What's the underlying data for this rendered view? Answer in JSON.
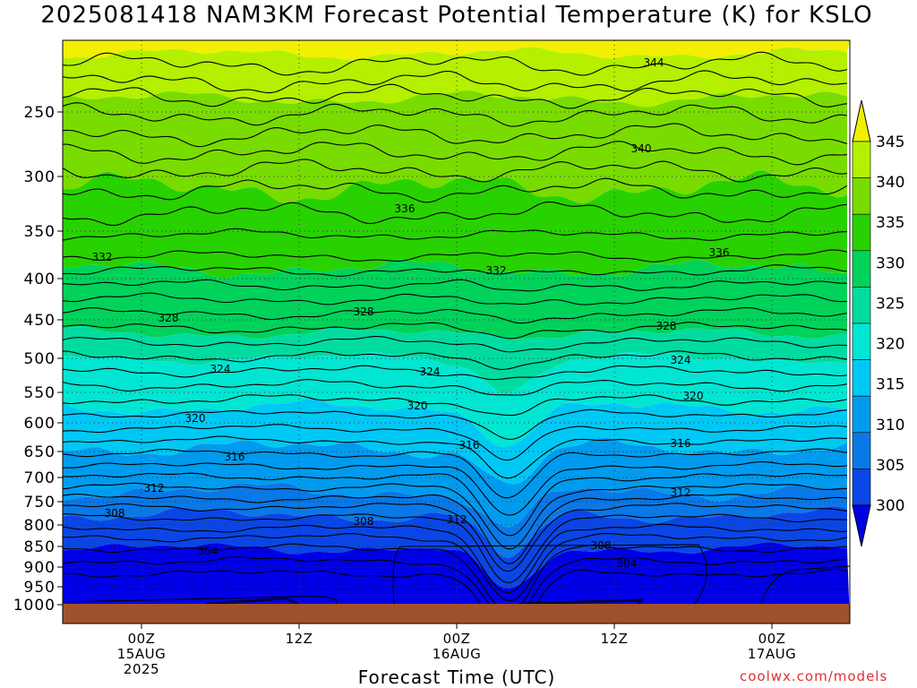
{
  "title": "2025081418 NAM3KM Forecast Potential Temperature (K) for KSLO",
  "credit": "coolwx.com/models",
  "chart_data": {
    "type": "heatmap",
    "title": "2025081418 NAM3KM Forecast Potential Temperature (K) for KSLO",
    "xlabel": "Forecast Time (UTC)",
    "ylabel": "",
    "y_axis": {
      "reversed": true,
      "ylim": [
        1000,
        200
      ],
      "ticks": [
        "250",
        "300",
        "350",
        "400",
        "450",
        "500",
        "550",
        "600",
        "650",
        "700",
        "750",
        "800",
        "850",
        "900",
        "950",
        "1000"
      ]
    },
    "x_ticks": [
      {
        "label": "00Z",
        "sub": [
          "15AUG",
          "2025"
        ]
      },
      {
        "label": "12Z",
        "sub": []
      },
      {
        "label": "00Z",
        "sub": [
          "16AUG"
        ]
      },
      {
        "label": "12Z",
        "sub": []
      },
      {
        "label": "00Z",
        "sub": [
          "17AUG"
        ]
      }
    ],
    "grid": true,
    "colorbar": {
      "levels": [
        300,
        305,
        310,
        315,
        320,
        325,
        330,
        335,
        340,
        345
      ],
      "labels": [
        "345",
        "340",
        "335",
        "330",
        "325",
        "320",
        "315",
        "310",
        "305",
        "300"
      ],
      "colors": [
        "#0000e6",
        "#0a46e6",
        "#0a78e6",
        "#009bee",
        "#00c8f5",
        "#00e6d2",
        "#00dca0",
        "#00d25a",
        "#28d200",
        "#78dc00",
        "#b4f000",
        "#f0f000"
      ]
    },
    "contour_labels": [
      "344",
      "340",
      "336",
      "336",
      "332",
      "332",
      "328",
      "328",
      "328",
      "324",
      "324",
      "324",
      "320",
      "320",
      "320",
      "316",
      "316",
      "316",
      "312",
      "312",
      "308",
      "308",
      "312",
      "308",
      "304",
      "304"
    ],
    "surface_color": "#a0522d",
    "profiles": [
      {
        "time": "15AUG 00Z",
        "theta_at_p": {
          "1000": 300,
          "900": 304,
          "800": 310,
          "700": 314,
          "600": 319,
          "500": 324,
          "400": 331,
          "300": 338,
          "250": 341
        }
      },
      {
        "time": "16AUG 00Z",
        "theta_at_p": {
          "1000": 300,
          "900": 304,
          "800": 309,
          "700": 314,
          "600": 318,
          "500": 324,
          "400": 331,
          "300": 337,
          "250": 341
        }
      },
      {
        "time": "17AUG 00Z",
        "theta_at_p": {
          "1000": 301,
          "900": 305,
          "800": 311,
          "700": 315,
          "600": 320,
          "500": 325,
          "400": 333,
          "300": 339,
          "250": 342
        }
      }
    ]
  }
}
